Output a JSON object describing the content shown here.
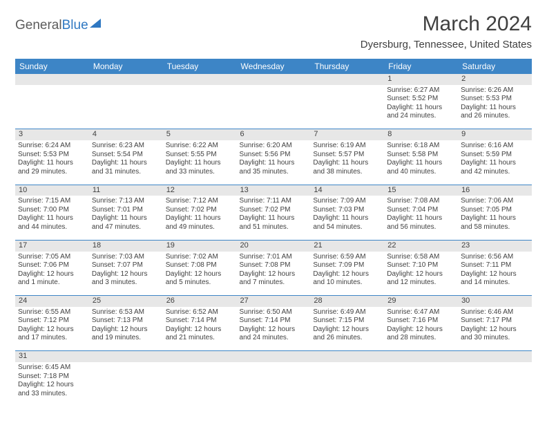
{
  "logo": {
    "part1": "General",
    "part2": "Blue"
  },
  "title": "March 2024",
  "location": "Dyersburg, Tennessee, United States",
  "dayHeaders": [
    "Sunday",
    "Monday",
    "Tuesday",
    "Wednesday",
    "Thursday",
    "Friday",
    "Saturday"
  ],
  "header_bg": "#3d85c6",
  "header_fg": "#ffffff",
  "daynum_bg": "#e7e7e7",
  "weeks": [
    {
      "nums": [
        "",
        "",
        "",
        "",
        "",
        "1",
        "2"
      ],
      "cells": [
        null,
        null,
        null,
        null,
        null,
        {
          "sunrise": "Sunrise: 6:27 AM",
          "sunset": "Sunset: 5:52 PM",
          "dl1": "Daylight: 11 hours",
          "dl2": "and 24 minutes."
        },
        {
          "sunrise": "Sunrise: 6:26 AM",
          "sunset": "Sunset: 5:53 PM",
          "dl1": "Daylight: 11 hours",
          "dl2": "and 26 minutes."
        }
      ]
    },
    {
      "nums": [
        "3",
        "4",
        "5",
        "6",
        "7",
        "8",
        "9"
      ],
      "cells": [
        {
          "sunrise": "Sunrise: 6:24 AM",
          "sunset": "Sunset: 5:53 PM",
          "dl1": "Daylight: 11 hours",
          "dl2": "and 29 minutes."
        },
        {
          "sunrise": "Sunrise: 6:23 AM",
          "sunset": "Sunset: 5:54 PM",
          "dl1": "Daylight: 11 hours",
          "dl2": "and 31 minutes."
        },
        {
          "sunrise": "Sunrise: 6:22 AM",
          "sunset": "Sunset: 5:55 PM",
          "dl1": "Daylight: 11 hours",
          "dl2": "and 33 minutes."
        },
        {
          "sunrise": "Sunrise: 6:20 AM",
          "sunset": "Sunset: 5:56 PM",
          "dl1": "Daylight: 11 hours",
          "dl2": "and 35 minutes."
        },
        {
          "sunrise": "Sunrise: 6:19 AM",
          "sunset": "Sunset: 5:57 PM",
          "dl1": "Daylight: 11 hours",
          "dl2": "and 38 minutes."
        },
        {
          "sunrise": "Sunrise: 6:18 AM",
          "sunset": "Sunset: 5:58 PM",
          "dl1": "Daylight: 11 hours",
          "dl2": "and 40 minutes."
        },
        {
          "sunrise": "Sunrise: 6:16 AM",
          "sunset": "Sunset: 5:59 PM",
          "dl1": "Daylight: 11 hours",
          "dl2": "and 42 minutes."
        }
      ]
    },
    {
      "nums": [
        "10",
        "11",
        "12",
        "13",
        "14",
        "15",
        "16"
      ],
      "cells": [
        {
          "sunrise": "Sunrise: 7:15 AM",
          "sunset": "Sunset: 7:00 PM",
          "dl1": "Daylight: 11 hours",
          "dl2": "and 44 minutes."
        },
        {
          "sunrise": "Sunrise: 7:13 AM",
          "sunset": "Sunset: 7:01 PM",
          "dl1": "Daylight: 11 hours",
          "dl2": "and 47 minutes."
        },
        {
          "sunrise": "Sunrise: 7:12 AM",
          "sunset": "Sunset: 7:02 PM",
          "dl1": "Daylight: 11 hours",
          "dl2": "and 49 minutes."
        },
        {
          "sunrise": "Sunrise: 7:11 AM",
          "sunset": "Sunset: 7:02 PM",
          "dl1": "Daylight: 11 hours",
          "dl2": "and 51 minutes."
        },
        {
          "sunrise": "Sunrise: 7:09 AM",
          "sunset": "Sunset: 7:03 PM",
          "dl1": "Daylight: 11 hours",
          "dl2": "and 54 minutes."
        },
        {
          "sunrise": "Sunrise: 7:08 AM",
          "sunset": "Sunset: 7:04 PM",
          "dl1": "Daylight: 11 hours",
          "dl2": "and 56 minutes."
        },
        {
          "sunrise": "Sunrise: 7:06 AM",
          "sunset": "Sunset: 7:05 PM",
          "dl1": "Daylight: 11 hours",
          "dl2": "and 58 minutes."
        }
      ]
    },
    {
      "nums": [
        "17",
        "18",
        "19",
        "20",
        "21",
        "22",
        "23"
      ],
      "cells": [
        {
          "sunrise": "Sunrise: 7:05 AM",
          "sunset": "Sunset: 7:06 PM",
          "dl1": "Daylight: 12 hours",
          "dl2": "and 1 minute."
        },
        {
          "sunrise": "Sunrise: 7:03 AM",
          "sunset": "Sunset: 7:07 PM",
          "dl1": "Daylight: 12 hours",
          "dl2": "and 3 minutes."
        },
        {
          "sunrise": "Sunrise: 7:02 AM",
          "sunset": "Sunset: 7:08 PM",
          "dl1": "Daylight: 12 hours",
          "dl2": "and 5 minutes."
        },
        {
          "sunrise": "Sunrise: 7:01 AM",
          "sunset": "Sunset: 7:08 PM",
          "dl1": "Daylight: 12 hours",
          "dl2": "and 7 minutes."
        },
        {
          "sunrise": "Sunrise: 6:59 AM",
          "sunset": "Sunset: 7:09 PM",
          "dl1": "Daylight: 12 hours",
          "dl2": "and 10 minutes."
        },
        {
          "sunrise": "Sunrise: 6:58 AM",
          "sunset": "Sunset: 7:10 PM",
          "dl1": "Daylight: 12 hours",
          "dl2": "and 12 minutes."
        },
        {
          "sunrise": "Sunrise: 6:56 AM",
          "sunset": "Sunset: 7:11 PM",
          "dl1": "Daylight: 12 hours",
          "dl2": "and 14 minutes."
        }
      ]
    },
    {
      "nums": [
        "24",
        "25",
        "26",
        "27",
        "28",
        "29",
        "30"
      ],
      "cells": [
        {
          "sunrise": "Sunrise: 6:55 AM",
          "sunset": "Sunset: 7:12 PM",
          "dl1": "Daylight: 12 hours",
          "dl2": "and 17 minutes."
        },
        {
          "sunrise": "Sunrise: 6:53 AM",
          "sunset": "Sunset: 7:13 PM",
          "dl1": "Daylight: 12 hours",
          "dl2": "and 19 minutes."
        },
        {
          "sunrise": "Sunrise: 6:52 AM",
          "sunset": "Sunset: 7:14 PM",
          "dl1": "Daylight: 12 hours",
          "dl2": "and 21 minutes."
        },
        {
          "sunrise": "Sunrise: 6:50 AM",
          "sunset": "Sunset: 7:14 PM",
          "dl1": "Daylight: 12 hours",
          "dl2": "and 24 minutes."
        },
        {
          "sunrise": "Sunrise: 6:49 AM",
          "sunset": "Sunset: 7:15 PM",
          "dl1": "Daylight: 12 hours",
          "dl2": "and 26 minutes."
        },
        {
          "sunrise": "Sunrise: 6:47 AM",
          "sunset": "Sunset: 7:16 PM",
          "dl1": "Daylight: 12 hours",
          "dl2": "and 28 minutes."
        },
        {
          "sunrise": "Sunrise: 6:46 AM",
          "sunset": "Sunset: 7:17 PM",
          "dl1": "Daylight: 12 hours",
          "dl2": "and 30 minutes."
        }
      ]
    },
    {
      "nums": [
        "31",
        "",
        "",
        "",
        "",
        "",
        ""
      ],
      "cells": [
        {
          "sunrise": "Sunrise: 6:45 AM",
          "sunset": "Sunset: 7:18 PM",
          "dl1": "Daylight: 12 hours",
          "dl2": "and 33 minutes."
        },
        null,
        null,
        null,
        null,
        null,
        null
      ]
    }
  ]
}
